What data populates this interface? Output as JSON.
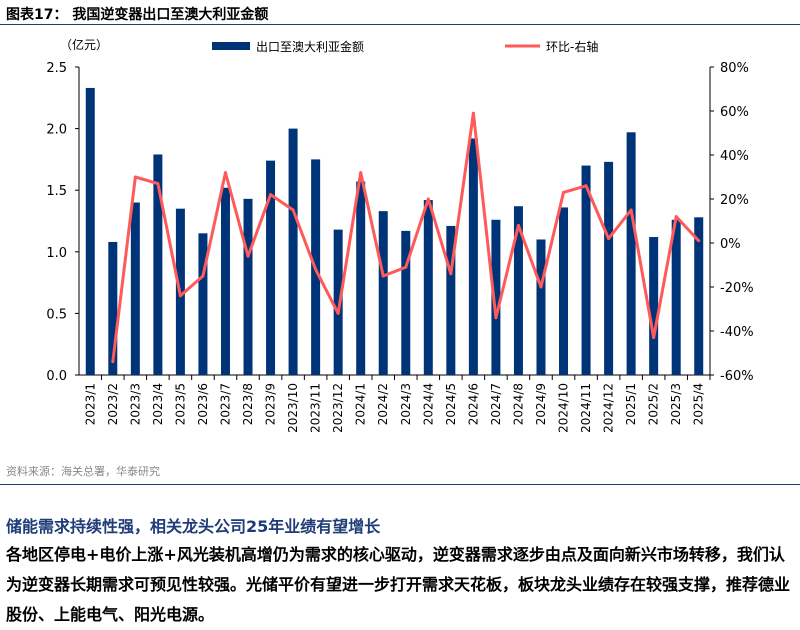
{
  "title": "图表17：  我国逆变器出口至澳大利亚金额",
  "source": "资料来源：海关总署，华泰研究",
  "headline": "储能需求持续性强，相关龙头公司25年业绩有望增长",
  "paragraph": "各地区停电+电价上涨+风光装机高增仍为需求的核心驱动，逆变器需求逐步由点及面向新兴市场转移，我们认为逆变器长期需求可预见性较强。光储平价有望进一步打开需求天花板，板块龙头业绩存在较强支撑，推荐德业股份、上能电气、阳光电源。",
  "chart_data": {
    "type": "bar+line",
    "ylabel": "（亿元）",
    "ylim": [
      0,
      2.5
    ],
    "yticks": [
      "0.0",
      "0.5",
      "1.0",
      "1.5",
      "2.0",
      "2.5"
    ],
    "y2lim": [
      -60,
      80
    ],
    "y2ticks": [
      "-60%",
      "-40%",
      "-20%",
      "0%",
      "20%",
      "40%",
      "60%",
      "80%"
    ],
    "categories": [
      "2023/1",
      "2023/2",
      "2023/3",
      "2023/4",
      "2023/5",
      "2023/6",
      "2023/7",
      "2023/8",
      "2023/9",
      "2023/10",
      "2023/11",
      "2023/12",
      "2024/1",
      "2024/2",
      "2024/3",
      "2024/4",
      "2024/5",
      "2024/6",
      "2024/7",
      "2024/8",
      "2024/9",
      "2024/10",
      "2024/11",
      "2024/12",
      "2025/1",
      "2025/2",
      "2025/3",
      "2025/4"
    ],
    "series": [
      {
        "name": "出口至澳大利亚金额",
        "type": "bar",
        "color": "#003478",
        "values": [
          2.33,
          1.08,
          1.4,
          1.79,
          1.35,
          1.15,
          1.52,
          1.43,
          1.74,
          2.0,
          1.75,
          1.18,
          1.57,
          1.33,
          1.17,
          1.42,
          1.21,
          1.92,
          1.26,
          1.37,
          1.1,
          1.36,
          1.7,
          1.73,
          1.97,
          1.12,
          1.26,
          1.28
        ]
      },
      {
        "name": "环比-右轴",
        "type": "line",
        "color": "#ff5a5a",
        "values": [
          null,
          -54,
          30,
          27,
          -24,
          -15,
          32,
          -6,
          22,
          15,
          -12,
          -32,
          32,
          -15,
          -11,
          20,
          -14,
          59,
          -34,
          8,
          -20,
          23,
          26,
          2,
          15,
          -43,
          12,
          1
        ]
      }
    ],
    "legend": "top"
  }
}
